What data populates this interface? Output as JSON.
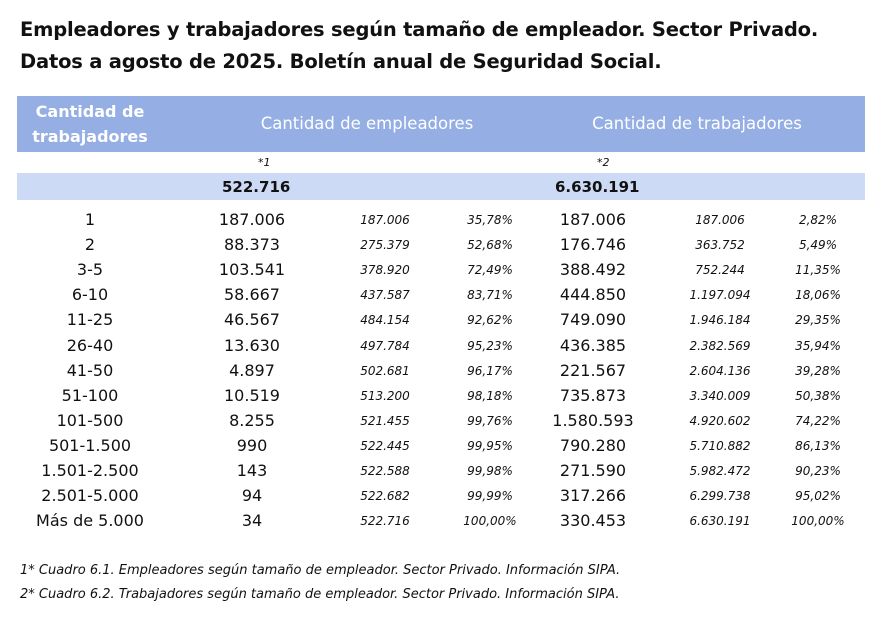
{
  "title_line1": "Empleadores y trabajadores según tamaño de empleador. Sector Privado.",
  "title_line2": "Datos a agosto de 2025. Boletín anual de Seguridad Social.",
  "header": {
    "col_size_line1": "Cantidad de",
    "col_size_line2": "trabajadores",
    "col_employers": "Cantidad de empleadores",
    "col_workers": "Cantidad de trabajadores",
    "note_employers": "*1",
    "note_workers": "*2"
  },
  "totals": {
    "employers": "522.716",
    "workers": "6.630.191"
  },
  "rows": [
    [
      "1",
      "187.006",
      "187.006",
      "35,78%",
      "187.006",
      "187.006",
      "2,82%"
    ],
    [
      "2",
      "88.373",
      "275.379",
      "52,68%",
      "176.746",
      "363.752",
      "5,49%"
    ],
    [
      "3-5",
      "103.541",
      "378.920",
      "72,49%",
      "388.492",
      "752.244",
      "11,35%"
    ],
    [
      "6-10",
      "58.667",
      "437.587",
      "83,71%",
      "444.850",
      "1.197.094",
      "18,06%"
    ],
    [
      "11-25",
      "46.567",
      "484.154",
      "92,62%",
      "749.090",
      "1.946.184",
      "29,35%"
    ],
    [
      "26-40",
      "13.630",
      "497.784",
      "95,23%",
      "436.385",
      "2.382.569",
      "35,94%"
    ],
    [
      "41-50",
      "4.897",
      "502.681",
      "96,17%",
      "221.567",
      "2.604.136",
      "39,28%"
    ],
    [
      "51-100",
      "10.519",
      "513.200",
      "98,18%",
      "735.873",
      "3.340.009",
      "50,38%"
    ],
    [
      "101-500",
      "8.255",
      "521.455",
      "99,76%",
      "1.580.593",
      "4.920.602",
      "74,22%"
    ],
    [
      "501-1.500",
      "990",
      "522.445",
      "99,95%",
      "790.280",
      "5.710.882",
      "86,13%"
    ],
    [
      "1.501-2.500",
      "143",
      "522.588",
      "99,98%",
      "271.590",
      "5.982.472",
      "90,23%"
    ],
    [
      "2.501-5.000",
      "94",
      "522.682",
      "99,99%",
      "317.266",
      "6.299.738",
      "95,02%"
    ],
    [
      "Más de 5.000",
      "34",
      "522.716",
      "100,00%",
      "330.453",
      "6.630.191",
      "100,00%"
    ]
  ],
  "footnotes": [
    "1* Cuadro 6.1. Empleadores según tamaño de empleador. Sector Privado. Información SIPA.",
    "2* Cuadro 6.2. Trabajadores según tamaño de empleador. Sector Privado. Información SIPA."
  ],
  "colors": {
    "header_bg": "#95aee4",
    "total_bg": "#cddaf5"
  }
}
